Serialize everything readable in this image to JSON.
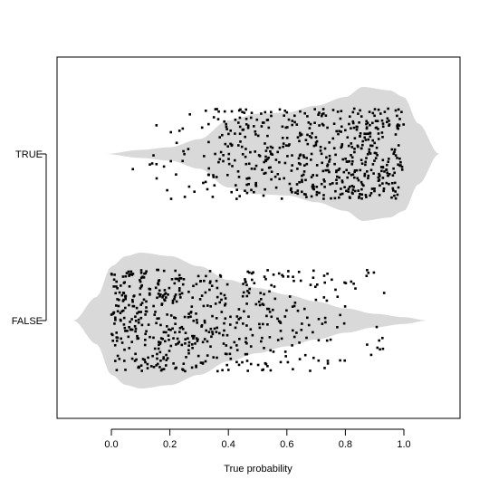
{
  "chart_data": {
    "type": "scatter",
    "title": "",
    "xlabel": "True probability",
    "ylabel": "",
    "xlim": [
      -0.19,
      1.19
    ],
    "x_ticks": [
      0.0,
      0.2,
      0.4,
      0.6,
      0.8,
      1.0
    ],
    "x_tick_labels": [
      "0.0",
      "0.2",
      "0.4",
      "0.6",
      "0.8",
      "1.0"
    ],
    "categories": [
      "TRUE",
      "FALSE"
    ],
    "grid": false,
    "violin_color": "#d9d9d9",
    "point_color": "#000000",
    "series": [
      {
        "name": "TRUE",
        "n_points": 560,
        "points_x_range": [
          0.06,
          1.0
        ],
        "violin_extent": [
          -0.02,
          1.12
        ],
        "density_profile": [
          [
            -0.02,
            0.0
          ],
          [
            0.1,
            0.06
          ],
          [
            0.2,
            0.1
          ],
          [
            0.3,
            0.22
          ],
          [
            0.4,
            0.5
          ],
          [
            0.5,
            0.6
          ],
          [
            0.6,
            0.62
          ],
          [
            0.7,
            0.72
          ],
          [
            0.8,
            0.85
          ],
          [
            0.86,
            1.0
          ],
          [
            0.95,
            0.95
          ],
          [
            1.0,
            0.85
          ],
          [
            1.05,
            0.45
          ],
          [
            1.12,
            0.0
          ]
        ]
      },
      {
        "name": "FALSE",
        "n_points": 560,
        "points_x_range": [
          0.0,
          0.95
        ],
        "violin_extent": [
          -0.13,
          1.08
        ],
        "density_profile": [
          [
            -0.13,
            0.0
          ],
          [
            -0.05,
            0.35
          ],
          [
            0.0,
            0.8
          ],
          [
            0.05,
            0.95
          ],
          [
            0.1,
            1.0
          ],
          [
            0.2,
            0.95
          ],
          [
            0.3,
            0.8
          ],
          [
            0.4,
            0.6
          ],
          [
            0.5,
            0.48
          ],
          [
            0.6,
            0.38
          ],
          [
            0.7,
            0.28
          ],
          [
            0.8,
            0.18
          ],
          [
            0.9,
            0.1
          ],
          [
            1.0,
            0.05
          ],
          [
            1.08,
            0.0
          ]
        ]
      }
    ]
  }
}
